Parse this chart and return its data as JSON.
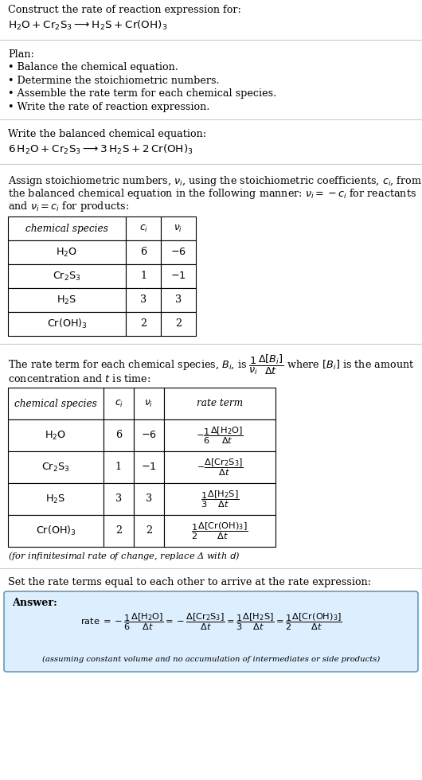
{
  "bg_color": "#ffffff",
  "title_line1": "Construct the rate of reaction expression for:",
  "plan_header": "Plan:",
  "plan_items": [
    "• Balance the chemical equation.",
    "• Determine the stoichiometric numbers.",
    "• Assemble the rate term for each chemical species.",
    "• Write the rate of reaction expression."
  ],
  "balanced_header": "Write the balanced chemical equation:",
  "stoich_lines": [
    "Assign stoichiometric numbers, $\\nu_i$, using the stoichiometric coefficients, $c_i$, from",
    "the balanced chemical equation in the following manner: $\\nu_i = -c_i$ for reactants",
    "and $\\nu_i = c_i$ for products:"
  ],
  "table1_col_headers": [
    "chemical species",
    "$c_i$",
    "$\\nu_i$"
  ],
  "table1_rows": [
    [
      "$\\mathrm{H_2O}$",
      "6",
      "$-6$"
    ],
    [
      "$\\mathrm{Cr_2S_3}$",
      "1",
      "$-1$"
    ],
    [
      "$\\mathrm{H_2S}$",
      "3",
      "3"
    ],
    [
      "$\\mathrm{Cr(OH)_3}$",
      "2",
      "2"
    ]
  ],
  "rate_line1": "The rate term for each chemical species, $B_i$, is $\\dfrac{1}{\\nu_i}\\dfrac{\\Delta[B_i]}{\\Delta t}$ where $[B_i]$ is the amount",
  "rate_line2": "concentration and $t$ is time:",
  "table2_col_headers": [
    "chemical species",
    "$c_i$",
    "$\\nu_i$",
    "rate term"
  ],
  "table2_rows": [
    [
      "$\\mathrm{H_2O}$",
      "6",
      "$-6$",
      "$-\\dfrac{1}{6}\\dfrac{\\Delta[\\mathrm{H_2O}]}{\\Delta t}$"
    ],
    [
      "$\\mathrm{Cr_2S_3}$",
      "1",
      "$-1$",
      "$-\\dfrac{\\Delta[\\mathrm{Cr_2S_3}]}{\\Delta t}$"
    ],
    [
      "$\\mathrm{H_2S}$",
      "3",
      "3",
      "$\\dfrac{1}{3}\\dfrac{\\Delta[\\mathrm{H_2S}]}{\\Delta t}$"
    ],
    [
      "$\\mathrm{Cr(OH)_3}$",
      "2",
      "2",
      "$\\dfrac{1}{2}\\dfrac{\\Delta[\\mathrm{Cr(OH)_3}]}{\\Delta t}$"
    ]
  ],
  "infinitesimal_note": "(for infinitesimal rate of change, replace Δ with $d$)",
  "set_equal_header": "Set the rate terms equal to each other to arrive at the rate expression:",
  "answer_label": "Answer:",
  "answer_box_color": "#ddeeff",
  "answer_border_color": "#6699bb",
  "assuming_note": "(assuming constant volume and no accumulation of intermediates or side products)"
}
